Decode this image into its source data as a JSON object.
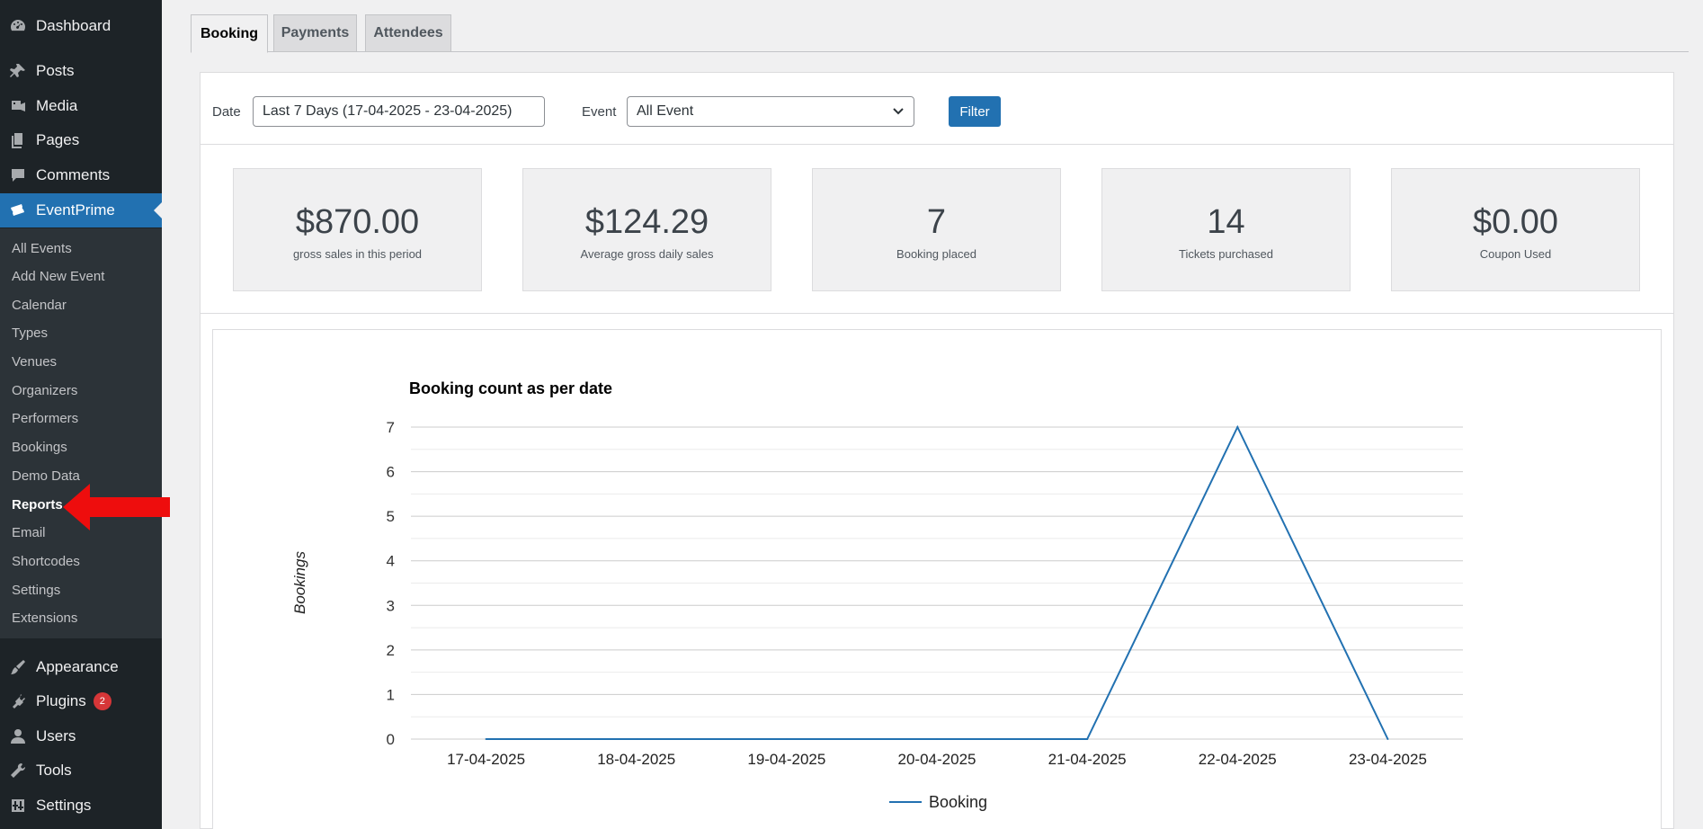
{
  "sidebar": {
    "top_items": [
      {
        "label": "Dashboard",
        "icon": "dashboard-icon"
      },
      {
        "label": "Posts",
        "icon": "pin-icon"
      },
      {
        "label": "Media",
        "icon": "media-icon"
      },
      {
        "label": "Pages",
        "icon": "pages-icon"
      },
      {
        "label": "Comments",
        "icon": "comment-icon"
      },
      {
        "label": "EventPrime",
        "icon": "ticket-icon"
      }
    ],
    "submenu": [
      "All Events",
      "Add New Event",
      "Calendar",
      "Types",
      "Venues",
      "Organizers",
      "Performers",
      "Bookings",
      "Demo Data",
      "Reports",
      "Email",
      "Shortcodes",
      "Settings",
      "Extensions"
    ],
    "bottom_items": [
      {
        "label": "Appearance",
        "icon": "brush-icon"
      },
      {
        "label": "Plugins",
        "icon": "plugin-icon",
        "badge": "2"
      },
      {
        "label": "Users",
        "icon": "user-icon"
      },
      {
        "label": "Tools",
        "icon": "wrench-icon"
      },
      {
        "label": "Settings",
        "icon": "settings-icon"
      }
    ],
    "accent_color": "#2271b1"
  },
  "tabs": [
    "Booking",
    "Payments",
    "Attendees"
  ],
  "filter": {
    "date_label": "Date",
    "date_value": "Last 7 Days (17-04-2025 - 23-04-2025)",
    "event_label": "Event",
    "event_value": "All Event",
    "button_label": "Filter"
  },
  "stats": [
    {
      "value": "$870.00",
      "label": "gross sales in this period"
    },
    {
      "value": "$124.29",
      "label": "Average gross daily sales"
    },
    {
      "value": "7",
      "label": "Booking placed"
    },
    {
      "value": "14",
      "label": "Tickets purchased"
    },
    {
      "value": "$0.00",
      "label": "Coupon Used"
    }
  ],
  "chart_data": {
    "type": "line",
    "title": "Booking count as per date",
    "xlabel": "",
    "ylabel": "Bookings",
    "categories": [
      "17-04-2025",
      "18-04-2025",
      "19-04-2025",
      "20-04-2025",
      "21-04-2025",
      "22-04-2025",
      "23-04-2025"
    ],
    "series": [
      {
        "name": "Booking",
        "values": [
          0,
          0,
          0,
          0,
          0,
          7,
          0
        ],
        "color": "#2271b1"
      }
    ],
    "ylim": [
      0,
      7
    ],
    "yticks": [
      0,
      1,
      2,
      3,
      4,
      5,
      6,
      7
    ],
    "grid": true,
    "legend": "bottom"
  }
}
